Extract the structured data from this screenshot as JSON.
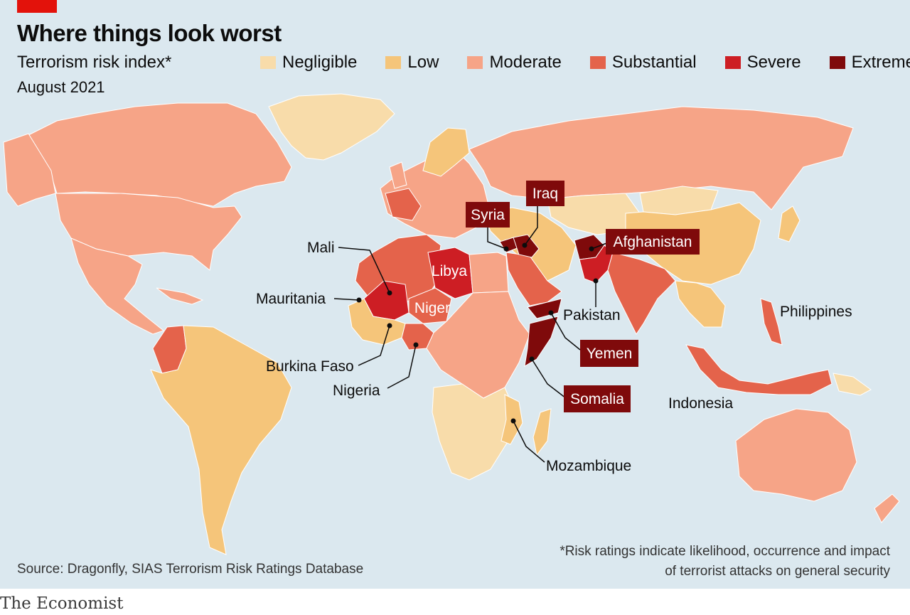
{
  "header": {
    "title": "Where things look worst",
    "subtitle": "Terrorism risk index*",
    "date": "August 2021"
  },
  "legend": [
    {
      "label": "Negligible",
      "color": "#f8dcaa"
    },
    {
      "label": "Low",
      "color": "#f5c57a"
    },
    {
      "label": "Moderate",
      "color": "#f6a487"
    },
    {
      "label": "Substantial",
      "color": "#e4634b"
    },
    {
      "label": "Severe",
      "color": "#cd1e24"
    },
    {
      "label": "Extreme",
      "color": "#7f0a0b"
    }
  ],
  "map": {
    "ocean_color": "#dbe8ef",
    "labels": {
      "syria": "Syria",
      "iraq": "Iraq",
      "afghanistan": "Afghanistan",
      "mali": "Mali",
      "libya": "Libya",
      "mauritania": "Mauritania",
      "niger": "Niger",
      "pakistan": "Pakistan",
      "philippines": "Philippines",
      "burkina_faso": "Burkina Faso",
      "nigeria": "Nigeria",
      "yemen": "Yemen",
      "somalia": "Somalia",
      "indonesia": "Indonesia",
      "mozambique": "Mozambique"
    }
  },
  "source": "Source: Dragonfly, SIAS Terrorism Risk Ratings Database",
  "footnote": {
    "line1": "*Risk ratings indicate likelihood, occurrence and impact",
    "line2": "of terrorist attacks on general security"
  },
  "brand": "The Economist"
}
